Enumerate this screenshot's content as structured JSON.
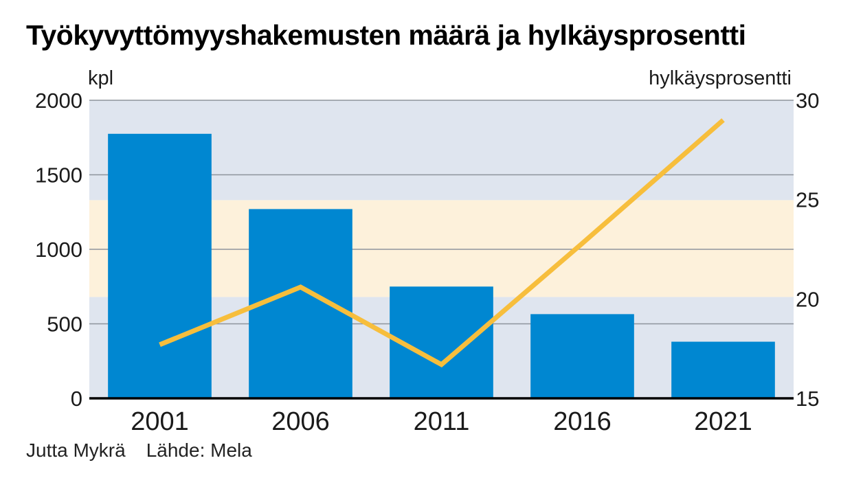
{
  "title": "Työkyvyttömyyshakemusten määrä ja hylkäysprosentti",
  "left_unit": "kpl",
  "right_unit": "hylkäysprosentti",
  "footer": {
    "author": "Jutta Mykrä",
    "source": "Lähde: Mela"
  },
  "colors": {
    "bar": "#0087d1",
    "line": "#f7be3c",
    "band_blue": "#dfe5ef",
    "band_cream": "#fdf1db",
    "grid": "#8e949c",
    "axis": "#000000"
  },
  "chart_data": {
    "type": "bar",
    "categories": [
      "2001",
      "2006",
      "2011",
      "2016",
      "2021"
    ],
    "series": [
      {
        "values": [
          1775,
          1270,
          750,
          565,
          380
        ],
        "axis": "left",
        "type": "bar"
      },
      {
        "values": [
          17.7,
          20.6,
          16.7,
          22.8,
          29
        ],
        "axis": "right",
        "type": "line"
      }
    ],
    "ylim": [
      0,
      2000
    ],
    "y_ticks": [
      0,
      500,
      1000,
      1500,
      2000
    ],
    "y2lim": [
      15,
      30
    ],
    "y2_ticks": [
      15,
      20,
      25,
      30
    ],
    "bands": [
      {
        "from": 0,
        "to": 680,
        "color": "band_blue"
      },
      {
        "from": 680,
        "to": 1330,
        "color": "band_cream"
      },
      {
        "from": 1330,
        "to": 2000,
        "color": "band_blue"
      }
    ],
    "grid": true
  }
}
